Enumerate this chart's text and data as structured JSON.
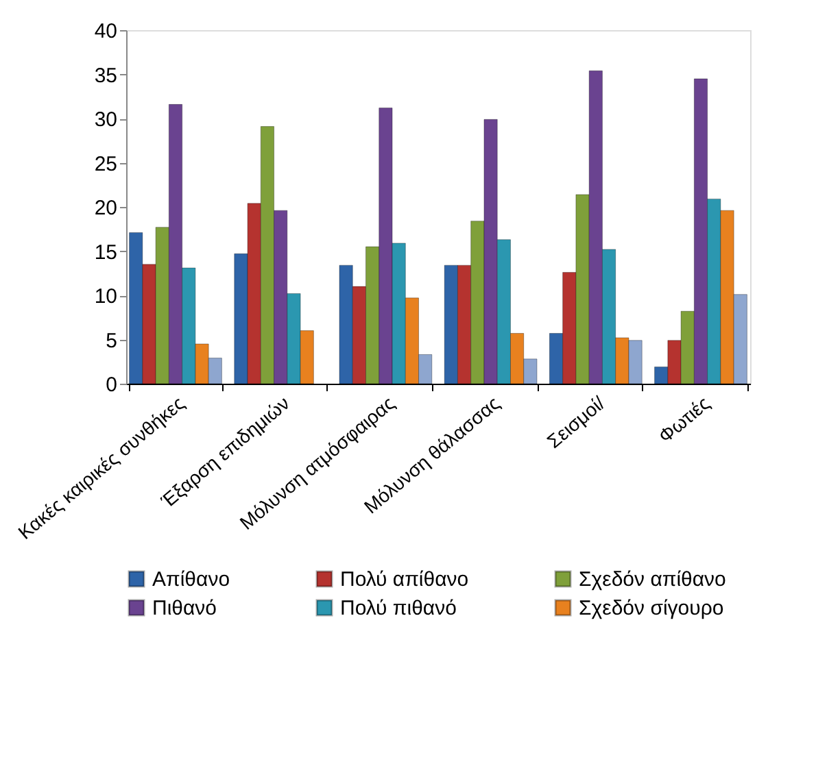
{
  "chart_data": {
    "type": "bar",
    "categories": [
      "Κακές καιρικές συνθήκες",
      "Έξαρση επιδημιών",
      "Μόλυνση ατμόσφαιρας",
      "Μόλυνση θάλασσας",
      "Σεισμοί/",
      "Φωτιές"
    ],
    "series": [
      {
        "name": "Απίθανο",
        "color": "#2e64a8",
        "values": [
          17.1,
          14.7,
          13.4,
          13.4,
          5.7,
          1.9
        ]
      },
      {
        "name": "Πολύ απίθανο",
        "color": "#b5332f",
        "values": [
          13.5,
          20.4,
          11.0,
          13.4,
          12.6,
          4.9
        ]
      },
      {
        "name": "Σχεδόν απίθανο",
        "color": "#7fa03a",
        "values": [
          17.7,
          29.1,
          15.5,
          18.4,
          21.4,
          8.2
        ]
      },
      {
        "name": "Πιθανό",
        "color": "#6a4390",
        "values": [
          31.6,
          19.6,
          31.2,
          29.9,
          35.4,
          34.5
        ]
      },
      {
        "name": "Πολύ  πιθανό",
        "color": "#2b97b0",
        "values": [
          13.1,
          10.2,
          15.9,
          16.3,
          15.2,
          20.9
        ]
      },
      {
        "name": "Σχεδόν σίγουρο",
        "color": "#e8811f",
        "values": [
          4.5,
          6.0,
          9.7,
          5.7,
          5.2,
          19.6
        ]
      },
      {
        "color": "#8ea6cf",
        "values": [
          2.9,
          null,
          3.3,
          2.8,
          4.9,
          10.1
        ]
      }
    ],
    "ylim": [
      0,
      40
    ],
    "yticks": [
      0,
      5,
      10,
      15,
      20,
      25,
      30,
      35,
      40
    ],
    "grid": false,
    "legend": "bottom"
  }
}
